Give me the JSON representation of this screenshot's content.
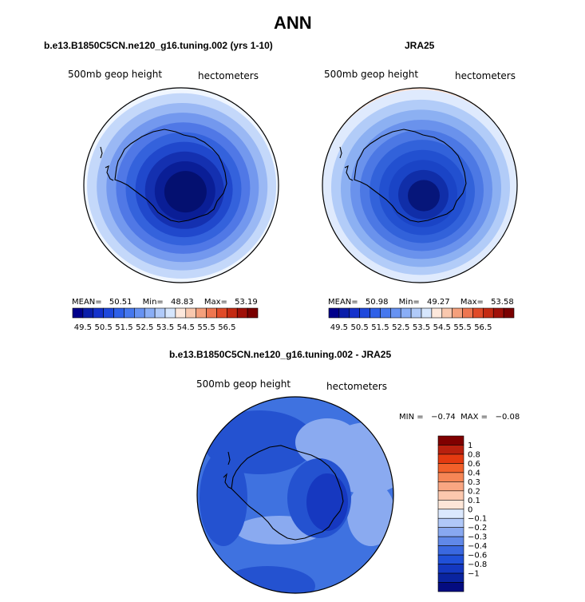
{
  "header": {
    "title": "ANN"
  },
  "panel_left": {
    "title": "b.e13.B1850C5CN.ne120_g16.tuning.002 (yrs 1-10)",
    "variable": "500mb geop height",
    "units": "hectometers",
    "stats": {
      "mean_label": "MEAN=",
      "mean": "50.51",
      "min_label": "Min=",
      "min": "48.83",
      "max_label": "Max=",
      "max": "53.19"
    }
  },
  "panel_right": {
    "title": "JRA25",
    "variable": "500mb geop height",
    "units": "hectometers",
    "stats": {
      "mean_label": "MEAN=",
      "mean": "50.98",
      "min_label": "Min=",
      "min": "49.27",
      "max_label": "Max=",
      "max": "53.58"
    }
  },
  "panel_diff": {
    "title": "b.e13.B1850C5CN.ne120_g16.tuning.002 - JRA25",
    "variable": "500mb geop height",
    "units": "hectometers",
    "minmax": "MIN =   −0.74  MAX =   −0.08"
  },
  "colorbar_main": {
    "colors": [
      "#00008b",
      "#0a1eaa",
      "#1432cc",
      "#1e48dc",
      "#2e60e8",
      "#4678ee",
      "#6692f2",
      "#8aaef6",
      "#b0caf9",
      "#d6e6fd",
      "#fde8dc",
      "#f9c8ae",
      "#f4a07c",
      "#ee7650",
      "#e04a28",
      "#c42a12",
      "#a01008",
      "#7a0000"
    ],
    "tick_labels": [
      "49.5",
      "50.5",
      "51.5",
      "52.5",
      "53.5",
      "54.5",
      "55.5",
      "56.5"
    ]
  },
  "colorbar_diff": {
    "colors": [
      "#7f0000",
      "#b8200e",
      "#e43a10",
      "#f2602a",
      "#f68656",
      "#f9a682",
      "#fcc8ae",
      "#fde6d8",
      "#dbe8fd",
      "#b0c8f8",
      "#88a8f0",
      "#6088e8",
      "#3a68e0",
      "#2050d8",
      "#1438c0",
      "#0a24a0",
      "#040c80"
    ],
    "tick_labels": [
      "1",
      "0.8",
      "0.6",
      "0.4",
      "0.3",
      "0.2",
      "0.1",
      "0",
      "−0.1",
      "−0.2",
      "−0.3",
      "−0.4",
      "−0.6",
      "−0.8",
      "−1"
    ]
  },
  "map_colors": {
    "left": [
      "#f0f6ff",
      "#c4d8fa",
      "#9ab8f4",
      "#7398ee",
      "#5078e6",
      "#3462dc",
      "#2048cc",
      "#1430b0",
      "#0a1e96",
      "#041070"
    ],
    "right": [
      "#fde0d0",
      "#dfeafd",
      "#b2ccf8",
      "#8cb0f2",
      "#6a92ec",
      "#4c78e4",
      "#3262da",
      "#2250d0",
      "#1a44c6",
      "#102ea8",
      "#06167a"
    ],
    "diff": {
      "base": "#3f72e0",
      "light": "#8aaaf0",
      "dark": "#2452d0",
      "darkest": "#1638c0"
    }
  }
}
